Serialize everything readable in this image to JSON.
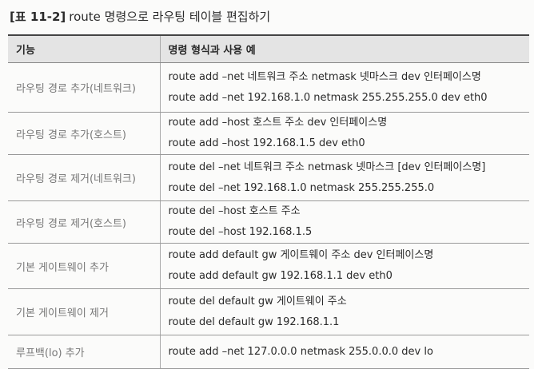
{
  "caption": {
    "label": "[표 11-2]",
    "text": "route 명령으로 라우팅 테이블 편집하기"
  },
  "table": {
    "header": [
      "기능",
      "명령 형식과 사용 예"
    ],
    "rows": [
      {
        "function": "라우팅 경로 추가(네트워크)",
        "lines": [
          "route add –net 네트워크 주소 netmask 넷마스크 dev 인터페이스명",
          "route add –net 192.168.1.0 netmask 255.255.255.0 dev eth0"
        ]
      },
      {
        "function": "라우팅 경로 추가(호스트)",
        "lines": [
          "route add –host 호스트 주소 dev 인터페이스명",
          "route add –host 192.168.1.5 dev eth0"
        ]
      },
      {
        "function": "라우팅 경로 제거(네트워크)",
        "lines": [
          "route del –net 네트워크 주소 netmask 넷마스크 [dev 인터페이스명]",
          "route del –net 192.168.1.0 netmask 255.255.255.0"
        ]
      },
      {
        "function": "라우팅 경로 제거(호스트)",
        "lines": [
          "route del –host 호스트 주소",
          "route del –host 192.168.1.5"
        ]
      },
      {
        "function": "기본 게이트웨이 추가",
        "lines": [
          "route add default gw 게이트웨이 주소 dev 인터페이스명",
          "route add default gw 192.168.1.1 dev eth0"
        ]
      },
      {
        "function": "기본 게이트웨이 제거",
        "lines": [
          "route del default gw 게이트웨이 주소",
          "route del default gw 192.168.1.1"
        ]
      },
      {
        "function": "루프백(lo) 추가",
        "lines": [
          "route add –net 127.0.0.0 netmask 255.0.0.0 dev lo"
        ]
      }
    ]
  }
}
